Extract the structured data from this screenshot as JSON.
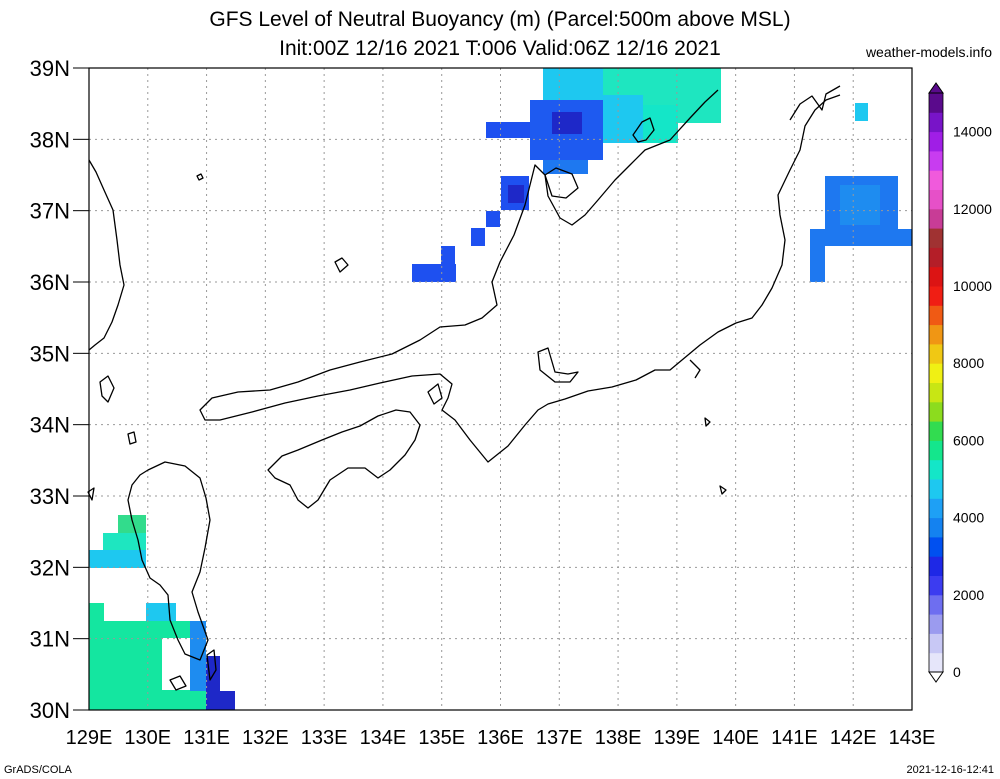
{
  "header": {
    "title_line1": "GFS Level of Neutral Buoyancy (m) (Parcel:500m above MSL)",
    "title_line2": "Init:00Z 12/16 2021 T:006 Valid:06Z 12/16 2021",
    "site": "weather-models.info"
  },
  "footer": {
    "left": "GrADS/COLA",
    "right": "2021-12-16-12:41"
  },
  "map": {
    "lon_labels": [
      "129E",
      "130E",
      "131E",
      "132E",
      "133E",
      "134E",
      "135E",
      "136E",
      "137E",
      "138E",
      "139E",
      "140E",
      "141E",
      "142E",
      "143E"
    ],
    "lat_labels": [
      "39N",
      "38N",
      "37N",
      "36N",
      "35N",
      "34N",
      "33N",
      "32N",
      "31N",
      "30N"
    ],
    "lon_range": [
      129,
      143
    ],
    "lat_range": [
      30,
      39
    ],
    "grid": true
  },
  "colorbar": {
    "labels": [
      "14000",
      "12000",
      "10000",
      "8000",
      "6000",
      "4000",
      "2000",
      "0"
    ],
    "colors": [
      "#e6e6fa",
      "#c8c8f5",
      "#9b9bef",
      "#6e6ef0",
      "#3c3cf0",
      "#1e28e6",
      "#0050f0",
      "#1482f0",
      "#1ea0f5",
      "#1ec8f0",
      "#14e6c8",
      "#14e68c",
      "#32dc50",
      "#8cdc1e",
      "#c8e614",
      "#f0f014",
      "#f0c814",
      "#f09614",
      "#f05a14",
      "#f01e14",
      "#dc1414",
      "#b41e28",
      "#a03232",
      "#c83c96",
      "#e650c8",
      "#f05adc",
      "#c83cf0",
      "#a01ee6",
      "#7814c8",
      "#5a0a8c"
    ]
  }
}
